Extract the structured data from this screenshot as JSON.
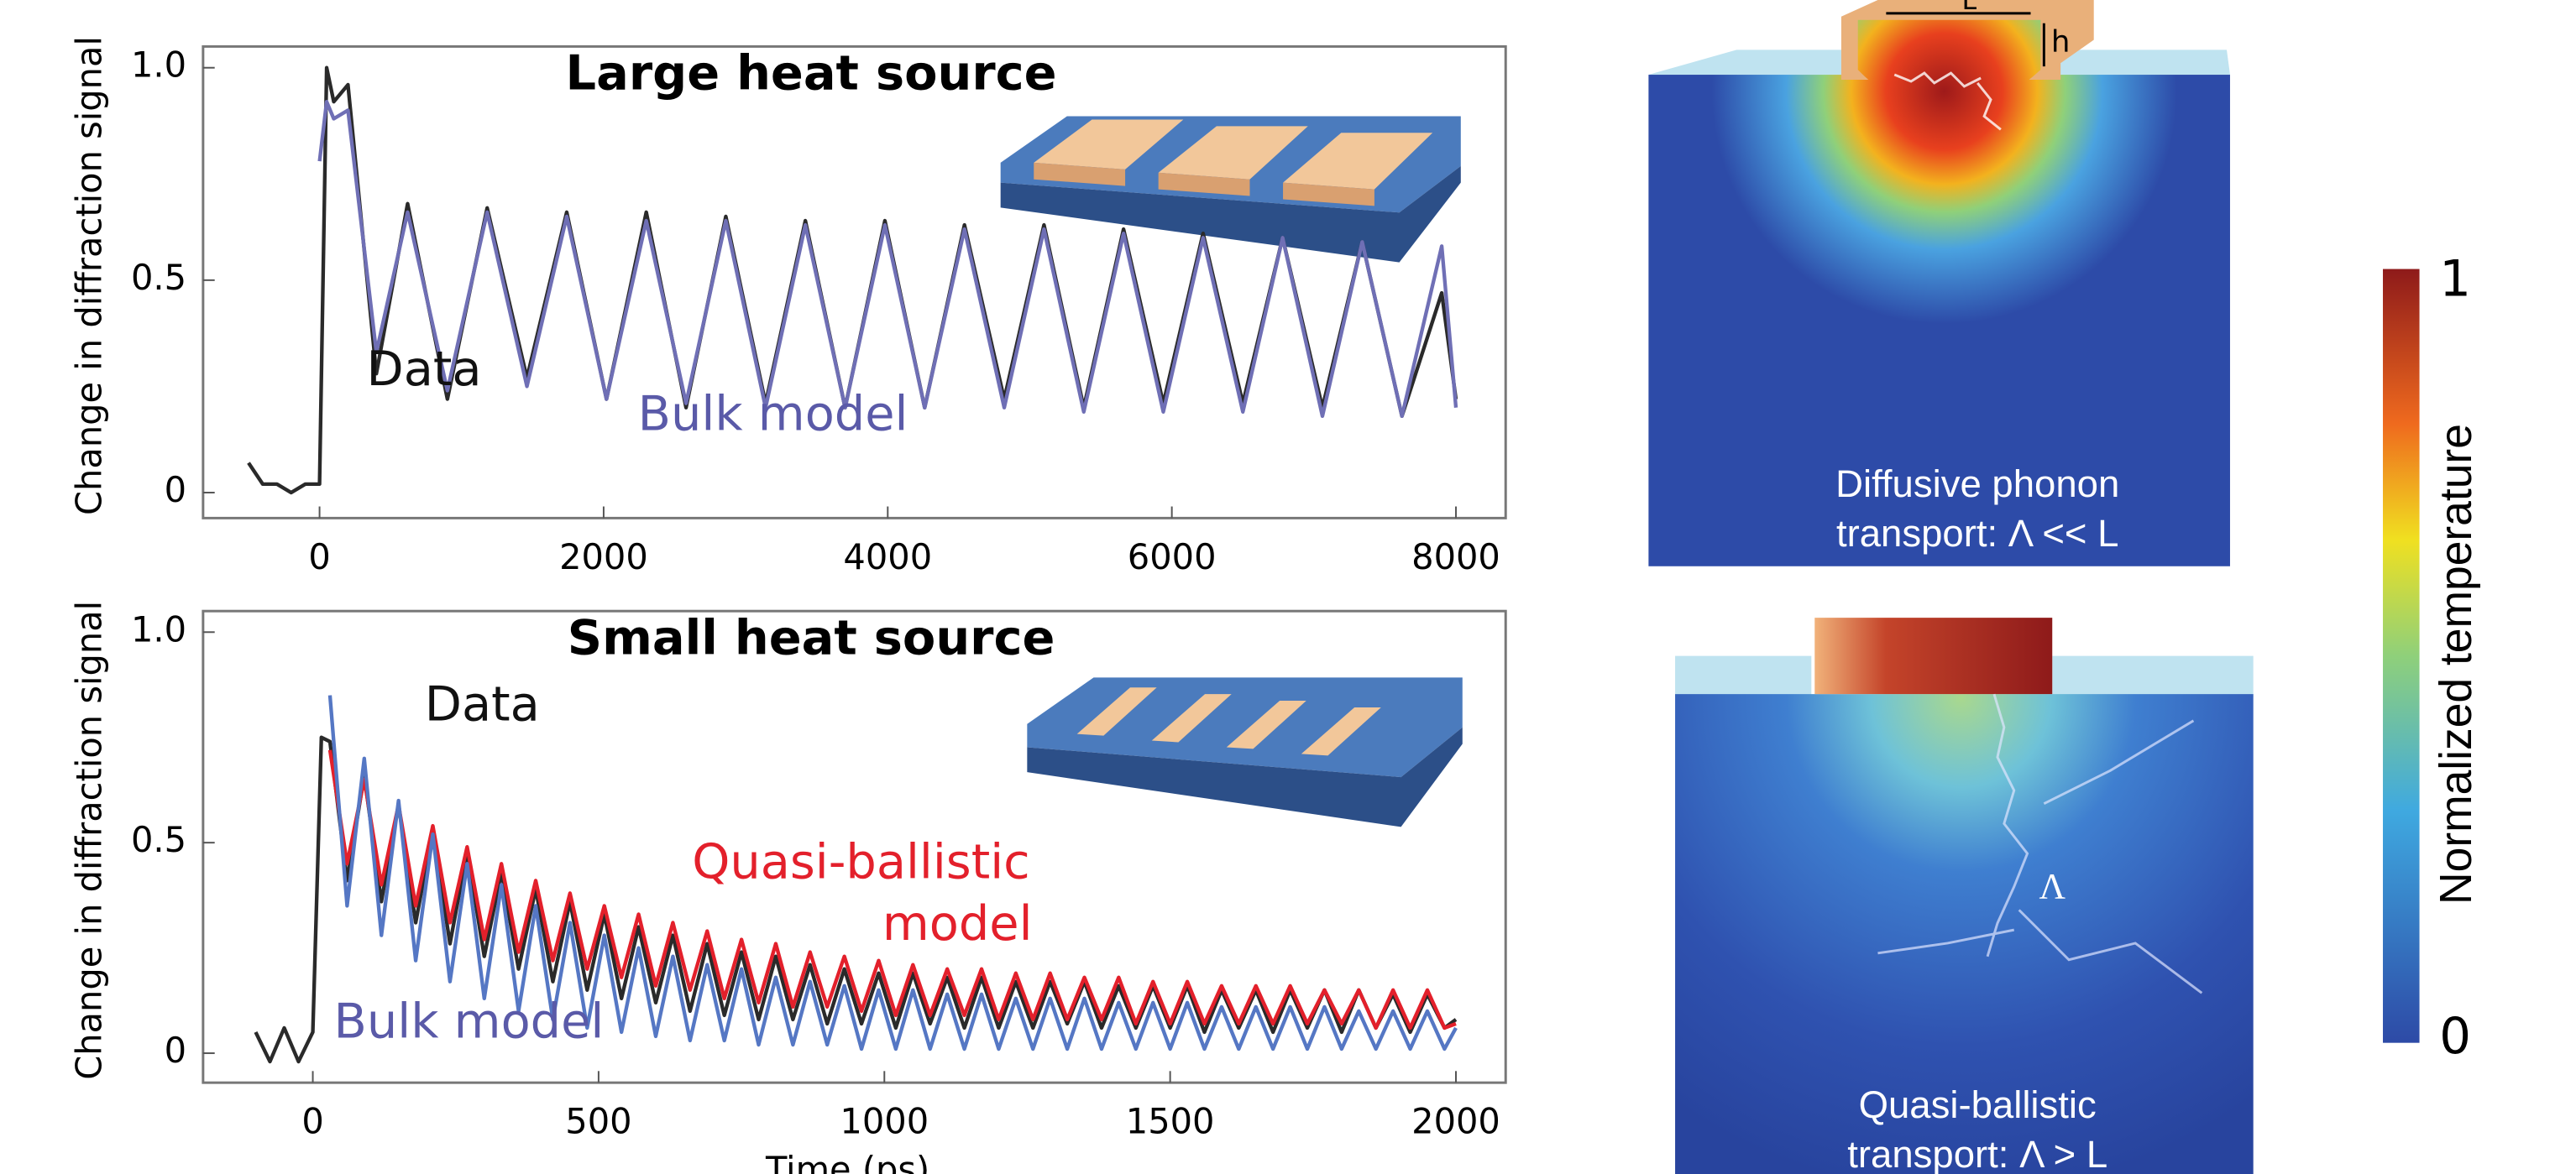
{
  "chart_data": [
    {
      "type": "line",
      "title": "Large heat source",
      "ylabel": "Change in diffraction signal",
      "xlim": [
        -820,
        8350
      ],
      "xticks": [
        0,
        2000,
        4000,
        6000,
        8000
      ],
      "ylim": [
        -0.06,
        1.05
      ],
      "yticks": [
        0,
        0.5,
        {
          "value": 1,
          "label": "1.0"
        }
      ],
      "x": [
        -500,
        -400,
        -300,
        -200,
        -100,
        0,
        50,
        100,
        200,
        400,
        620,
        900,
        1180,
        1460,
        1740,
        2020,
        2300,
        2580,
        2860,
        3140,
        3420,
        3700,
        3980,
        4260,
        4540,
        4820,
        5100,
        5380,
        5660,
        5940,
        6220,
        6500,
        6780,
        7060,
        7340,
        7620,
        7900,
        8000
      ],
      "series": [
        {
          "name": "Data",
          "color": "#2a2a2a",
          "values": [
            0.07,
            0.02,
            0.02,
            0.0,
            0.02,
            0.02,
            1.0,
            0.92,
            0.96,
            0.28,
            0.68,
            0.22,
            0.67,
            0.27,
            0.66,
            0.22,
            0.66,
            0.2,
            0.65,
            0.21,
            0.64,
            0.2,
            0.64,
            0.2,
            0.63,
            0.22,
            0.63,
            0.2,
            0.62,
            0.21,
            0.61,
            0.21,
            0.6,
            0.2,
            0.59,
            0.18,
            0.47,
            0.22
          ]
        },
        {
          "name": "Bulk model",
          "color": "#6f6fb5",
          "values": [
            null,
            null,
            null,
            null,
            null,
            0.78,
            0.92,
            0.88,
            0.9,
            0.33,
            0.66,
            0.24,
            0.66,
            0.25,
            0.65,
            0.22,
            0.64,
            0.21,
            0.64,
            0.2,
            0.63,
            0.2,
            0.63,
            0.2,
            0.62,
            0.2,
            0.62,
            0.19,
            0.61,
            0.19,
            0.6,
            0.19,
            0.6,
            0.18,
            0.59,
            0.18,
            0.58,
            0.2
          ]
        }
      ]
    },
    {
      "type": "line",
      "title": "Small heat source",
      "ylabel": "Change in diffraction signal",
      "xlabel": "Time (ps)",
      "xlim": [
        -192,
        2087
      ],
      "xticks": [
        0,
        500,
        1000,
        1500,
        2000
      ],
      "ylim": [
        -0.07,
        1.05
      ],
      "yticks": [
        0,
        0.5,
        {
          "value": 1,
          "label": "1.0"
        }
      ],
      "x": [
        -100,
        -75,
        -50,
        -25,
        0,
        15,
        30,
        60,
        90,
        120,
        150,
        180,
        210,
        240,
        270,
        300,
        330,
        360,
        390,
        420,
        450,
        480,
        510,
        540,
        570,
        600,
        630,
        660,
        690,
        720,
        750,
        780,
        810,
        840,
        870,
        900,
        930,
        960,
        990,
        1020,
        1050,
        1080,
        1110,
        1140,
        1170,
        1200,
        1230,
        1260,
        1290,
        1320,
        1350,
        1380,
        1410,
        1440,
        1470,
        1500,
        1530,
        1560,
        1590,
        1620,
        1650,
        1680,
        1710,
        1740,
        1770,
        1800,
        1830,
        1860,
        1890,
        1920,
        1950,
        1980,
        2000
      ],
      "series": [
        {
          "name": "Data",
          "color": "#2a2a2a",
          "values": [
            0.05,
            -0.02,
            0.06,
            -0.02,
            0.05,
            0.75,
            0.74,
            0.41,
            0.66,
            0.36,
            0.59,
            0.31,
            0.53,
            0.26,
            0.48,
            0.23,
            0.43,
            0.2,
            0.39,
            0.17,
            0.36,
            0.15,
            0.33,
            0.13,
            0.3,
            0.12,
            0.28,
            0.1,
            0.26,
            0.09,
            0.24,
            0.08,
            0.23,
            0.08,
            0.21,
            0.07,
            0.2,
            0.07,
            0.19,
            0.06,
            0.19,
            0.07,
            0.18,
            0.06,
            0.18,
            0.06,
            0.17,
            0.06,
            0.17,
            0.07,
            0.17,
            0.06,
            0.16,
            0.06,
            0.16,
            0.06,
            0.16,
            0.05,
            0.15,
            0.06,
            0.15,
            0.05,
            0.15,
            0.06,
            0.15,
            0.05,
            0.15,
            0.06,
            0.14,
            0.05,
            0.14,
            0.06,
            0.08
          ]
        },
        {
          "name": "Quasi-ballistic model",
          "color": "#e3202b",
          "values": [
            null,
            null,
            null,
            null,
            null,
            null,
            0.72,
            0.45,
            0.65,
            0.4,
            0.59,
            0.35,
            0.54,
            0.31,
            0.49,
            0.27,
            0.45,
            0.24,
            0.41,
            0.22,
            0.38,
            0.2,
            0.35,
            0.18,
            0.33,
            0.16,
            0.31,
            0.15,
            0.29,
            0.13,
            0.27,
            0.12,
            0.26,
            0.11,
            0.24,
            0.11,
            0.23,
            0.1,
            0.22,
            0.09,
            0.21,
            0.09,
            0.2,
            0.09,
            0.2,
            0.08,
            0.19,
            0.08,
            0.19,
            0.08,
            0.18,
            0.08,
            0.18,
            0.07,
            0.17,
            0.07,
            0.17,
            0.07,
            0.16,
            0.07,
            0.16,
            0.07,
            0.16,
            0.07,
            0.15,
            0.07,
            0.15,
            0.06,
            0.15,
            0.06,
            0.15,
            0.06,
            0.07
          ]
        },
        {
          "name": "Bulk model",
          "color": "#5577c4",
          "values": [
            null,
            null,
            null,
            null,
            null,
            null,
            0.85,
            0.35,
            0.7,
            0.28,
            0.6,
            0.22,
            0.52,
            0.17,
            0.45,
            0.13,
            0.4,
            0.1,
            0.35,
            0.08,
            0.31,
            0.06,
            0.28,
            0.05,
            0.25,
            0.04,
            0.23,
            0.03,
            0.21,
            0.03,
            0.2,
            0.02,
            0.18,
            0.02,
            0.17,
            0.02,
            0.16,
            0.01,
            0.15,
            0.01,
            0.15,
            0.01,
            0.14,
            0.01,
            0.14,
            0.01,
            0.13,
            0.01,
            0.13,
            0.01,
            0.13,
            0.01,
            0.12,
            0.01,
            0.12,
            0.01,
            0.12,
            0.01,
            0.11,
            0.01,
            0.11,
            0.01,
            0.11,
            0.01,
            0.11,
            0.01,
            0.1,
            0.01,
            0.1,
            0.01,
            0.1,
            0.01,
            0.06
          ]
        }
      ]
    }
  ],
  "annotations": [
    {
      "chart": 0,
      "text": "Data",
      "color": "#111111"
    },
    {
      "chart": 0,
      "text": "Bulk model",
      "color": "#5a5aa8"
    },
    {
      "chart": 1,
      "text": "Data",
      "color": "#111111"
    },
    {
      "chart": 1,
      "text": "Quasi-ballistic",
      "color": "#e3202b"
    },
    {
      "chart": 1,
      "text": "model",
      "color": "#e3202b"
    },
    {
      "chart": 1,
      "text": "Bulk model",
      "color": "#5a5aa8"
    }
  ],
  "figure": {
    "panels": [
      {
        "caption": [
          "Diffusive phonon",
          "transport: Λ << L"
        ],
        "width_label": "L",
        "height_label": "h"
      },
      {
        "caption": [
          "Quasi-ballistic",
          "transport: Λ > L"
        ],
        "path_label": "Λ"
      }
    ],
    "colorbar": {
      "label": "Normalized temperature",
      "ticks": [
        0,
        1
      ]
    }
  }
}
